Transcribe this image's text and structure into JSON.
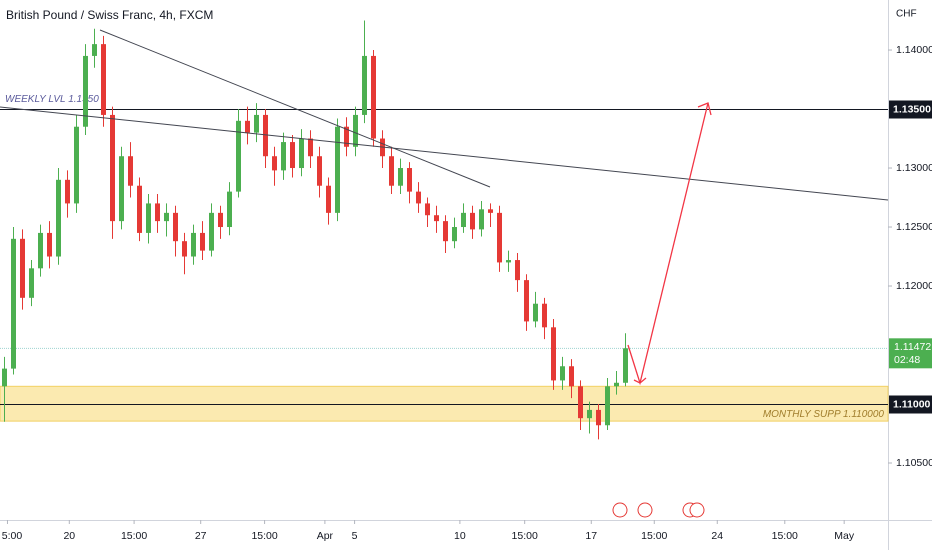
{
  "chart_data": {
    "type": "candlestick",
    "title": "British Pound / Swiss Franc, 4h, FXCM",
    "y_unit": "CHF",
    "up_color": "#4caf50",
    "down_color": "#e53935",
    "ylim": [
      1.10017,
      1.14424
    ],
    "yticks": [
      {
        "value": 1.14,
        "label": "1.14000"
      },
      {
        "value": 1.13,
        "label": "1.13000"
      },
      {
        "value": 1.125,
        "label": "1.12500"
      },
      {
        "value": 1.12,
        "label": "1.12000"
      },
      {
        "value": 1.105,
        "label": "1.10500"
      }
    ],
    "xlim": [
      -0.5,
      98.17
    ],
    "xticks": [
      {
        "value": 0.33,
        "label": "5:00"
      },
      {
        "value": 7.2,
        "label": "20"
      },
      {
        "value": 14.4,
        "label": "15:00"
      },
      {
        "value": 21.8,
        "label": "27"
      },
      {
        "value": 28.9,
        "label": "15:00"
      },
      {
        "value": 35.6,
        "label": "Apr"
      },
      {
        "value": 38.9,
        "label": "5"
      },
      {
        "value": 50.6,
        "label": "10"
      },
      {
        "value": 57.8,
        "label": "15:00"
      },
      {
        "value": 65.2,
        "label": "17"
      },
      {
        "value": 72.2,
        "label": "15:00"
      },
      {
        "value": 79.2,
        "label": "24"
      },
      {
        "value": 86.7,
        "label": "15:00"
      },
      {
        "value": 93.3,
        "label": "May"
      }
    ],
    "candles": [
      [
        1.1115,
        1.114,
        1.1085,
        1.113
      ],
      [
        1.113,
        1.125,
        1.1125,
        1.124
      ],
      [
        1.124,
        1.1248,
        1.118,
        1.119
      ],
      [
        1.119,
        1.1222,
        1.1183,
        1.1215
      ],
      [
        1.1215,
        1.1252,
        1.1208,
        1.1245
      ],
      [
        1.1245,
        1.1255,
        1.1215,
        1.1225
      ],
      [
        1.1225,
        1.13,
        1.1218,
        1.129
      ],
      [
        1.129,
        1.1298,
        1.1258,
        1.127
      ],
      [
        1.127,
        1.1345,
        1.1262,
        1.1335
      ],
      [
        1.1335,
        1.1405,
        1.1328,
        1.1395
      ],
      [
        1.1395,
        1.1418,
        1.1385,
        1.1405
      ],
      [
        1.1405,
        1.1412,
        1.1335,
        1.1345
      ],
      [
        1.1345,
        1.1352,
        1.124,
        1.1255
      ],
      [
        1.1255,
        1.1318,
        1.1248,
        1.131
      ],
      [
        1.131,
        1.1322,
        1.1275,
        1.1285
      ],
      [
        1.1285,
        1.1292,
        1.1238,
        1.1245
      ],
      [
        1.1245,
        1.1278,
        1.1236,
        1.127
      ],
      [
        1.127,
        1.1278,
        1.1245,
        1.1255
      ],
      [
        1.1255,
        1.127,
        1.1242,
        1.1262
      ],
      [
        1.1262,
        1.1268,
        1.1225,
        1.1238
      ],
      [
        1.1238,
        1.1245,
        1.121,
        1.1225
      ],
      [
        1.1225,
        1.1252,
        1.1218,
        1.1245
      ],
      [
        1.1245,
        1.1255,
        1.1222,
        1.123
      ],
      [
        1.123,
        1.127,
        1.1225,
        1.1262
      ],
      [
        1.1262,
        1.1268,
        1.124,
        1.125
      ],
      [
        1.125,
        1.1288,
        1.1243,
        1.128
      ],
      [
        1.128,
        1.135,
        1.1275,
        1.134
      ],
      [
        1.134,
        1.1352,
        1.132,
        1.133
      ],
      [
        1.133,
        1.1355,
        1.1322,
        1.1345
      ],
      [
        1.1345,
        1.135,
        1.13,
        1.131
      ],
      [
        1.131,
        1.1318,
        1.1285,
        1.1298
      ],
      [
        1.1298,
        1.133,
        1.129,
        1.1322
      ],
      [
        1.1322,
        1.1328,
        1.1292,
        1.13
      ],
      [
        1.13,
        1.1333,
        1.1293,
        1.1325
      ],
      [
        1.1325,
        1.1332,
        1.13,
        1.131
      ],
      [
        1.131,
        1.1318,
        1.1275,
        1.1285
      ],
      [
        1.1285,
        1.1292,
        1.1252,
        1.1262
      ],
      [
        1.1262,
        1.1342,
        1.1255,
        1.1335
      ],
      [
        1.1335,
        1.1343,
        1.131,
        1.1318
      ],
      [
        1.1318,
        1.1352,
        1.131,
        1.1345
      ],
      [
        1.1345,
        1.1425,
        1.1338,
        1.1395
      ],
      [
        1.1395,
        1.14,
        1.1318,
        1.1325
      ],
      [
        1.1325,
        1.1332,
        1.13,
        1.131
      ],
      [
        1.131,
        1.1318,
        1.1278,
        1.1285
      ],
      [
        1.1285,
        1.1308,
        1.1278,
        1.13
      ],
      [
        1.13,
        1.1305,
        1.127,
        1.128
      ],
      [
        1.128,
        1.1288,
        1.1262,
        1.127
      ],
      [
        1.127,
        1.1275,
        1.125,
        1.126
      ],
      [
        1.126,
        1.1268,
        1.1245,
        1.1255
      ],
      [
        1.1255,
        1.126,
        1.1228,
        1.1238
      ],
      [
        1.1238,
        1.1258,
        1.1232,
        1.125
      ],
      [
        1.125,
        1.127,
        1.1245,
        1.1262
      ],
      [
        1.1262,
        1.1268,
        1.124,
        1.1248
      ],
      [
        1.1248,
        1.1272,
        1.1242,
        1.1265
      ],
      [
        1.1265,
        1.127,
        1.125,
        1.1262
      ],
      [
        1.1262,
        1.1268,
        1.1212,
        1.122
      ],
      [
        1.122,
        1.123,
        1.1212,
        1.1222
      ],
      [
        1.1222,
        1.1228,
        1.1195,
        1.1205
      ],
      [
        1.1205,
        1.121,
        1.1162,
        1.117
      ],
      [
        1.117,
        1.1195,
        1.1165,
        1.1185
      ],
      [
        1.1185,
        1.119,
        1.1155,
        1.1165
      ],
      [
        1.1165,
        1.1172,
        1.1112,
        1.112
      ],
      [
        1.112,
        1.114,
        1.1112,
        1.1132
      ],
      [
        1.1132,
        1.1138,
        1.1105,
        1.1115
      ],
      [
        1.1115,
        1.112,
        1.1078,
        1.1088
      ],
      [
        1.1088,
        1.1102,
        1.1075,
        1.1095
      ],
      [
        1.1095,
        1.11,
        1.107,
        1.1082
      ],
      [
        1.1082,
        1.1122,
        1.1078,
        1.1115
      ],
      [
        1.1115,
        1.1128,
        1.1108,
        1.1118
      ],
      [
        1.1118,
        1.116,
        1.1115,
        1.11472
      ]
    ],
    "levels": [
      {
        "name": "WEEKLY LVL 1.1350",
        "value": 1.135,
        "label": "1.13500"
      },
      {
        "name": "MONTHLY SUPP 1.110000",
        "value": 1.11,
        "label": "1.11000"
      }
    ],
    "zone": [
      1.10855,
      1.1115
    ],
    "zone_color": "#fbe7a3",
    "last_price": {
      "value": 1.11472,
      "label": "1.11472",
      "countdown": "02:48"
    }
  }
}
